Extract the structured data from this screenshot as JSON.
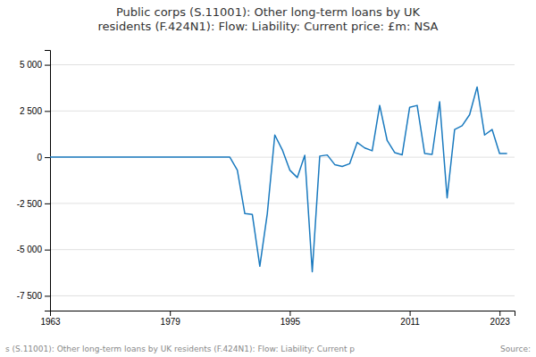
{
  "chart_data": {
    "type": "line",
    "title": "Public corps (S.11001): Other long-term loans by UK\nresidents (F.424N1): Flow: Liability: Current price: £m: NSA",
    "annotations": [
      "s (S.11001): Other long-term loans by UK residents (F.424N1): Flow: Liability: Current p",
      "Source:"
    ],
    "color": "#1a7abf",
    "grid": true,
    "x": [
      1963,
      1964,
      1965,
      1966,
      1967,
      1968,
      1969,
      1970,
      1971,
      1972,
      1973,
      1974,
      1975,
      1976,
      1977,
      1978,
      1979,
      1980,
      1981,
      1982,
      1983,
      1984,
      1985,
      1986,
      1987,
      1988,
      1989,
      1990,
      1991,
      1992,
      1993,
      1994,
      1995,
      1996,
      1997,
      1998,
      1999,
      2000,
      2001,
      2002,
      2003,
      2004,
      2005,
      2006,
      2007,
      2008,
      2009,
      2010,
      2011,
      2012,
      2013,
      2014,
      2015,
      2016,
      2017,
      2018,
      2019,
      2020,
      2021,
      2022,
      2023,
      2024
    ],
    "values": [
      0,
      0,
      0,
      0,
      0,
      0,
      0,
      0,
      0,
      0,
      0,
      0,
      0,
      0,
      0,
      0,
      0,
      0,
      0,
      0,
      0,
      0,
      0,
      0,
      0,
      -700,
      -3050,
      -3100,
      -5900,
      -3050,
      1200,
      400,
      -700,
      -1100,
      100,
      -6200,
      60,
      120,
      -400,
      -500,
      -350,
      800,
      500,
      350,
      2800,
      900,
      250,
      130,
      2700,
      2800,
      200,
      150,
      3000,
      -2200,
      1500,
      1700,
      2300,
      3800,
      1200,
      1500,
      200,
      200
    ],
    "xlim": [
      1963,
      2025
    ],
    "xticks": [
      1963,
      1979,
      1995,
      2011,
      2023
    ],
    "ylim": [
      -8300,
      5800
    ],
    "yticks": [
      {
        "value": 5000,
        "label": "5 000"
      },
      {
        "value": 2500,
        "label": "2 500"
      },
      0,
      {
        "value": -2500,
        "label": "-2 500"
      },
      {
        "value": -5000,
        "label": "-5 000"
      },
      {
        "value": -7500,
        "label": "-7 500"
      }
    ]
  }
}
